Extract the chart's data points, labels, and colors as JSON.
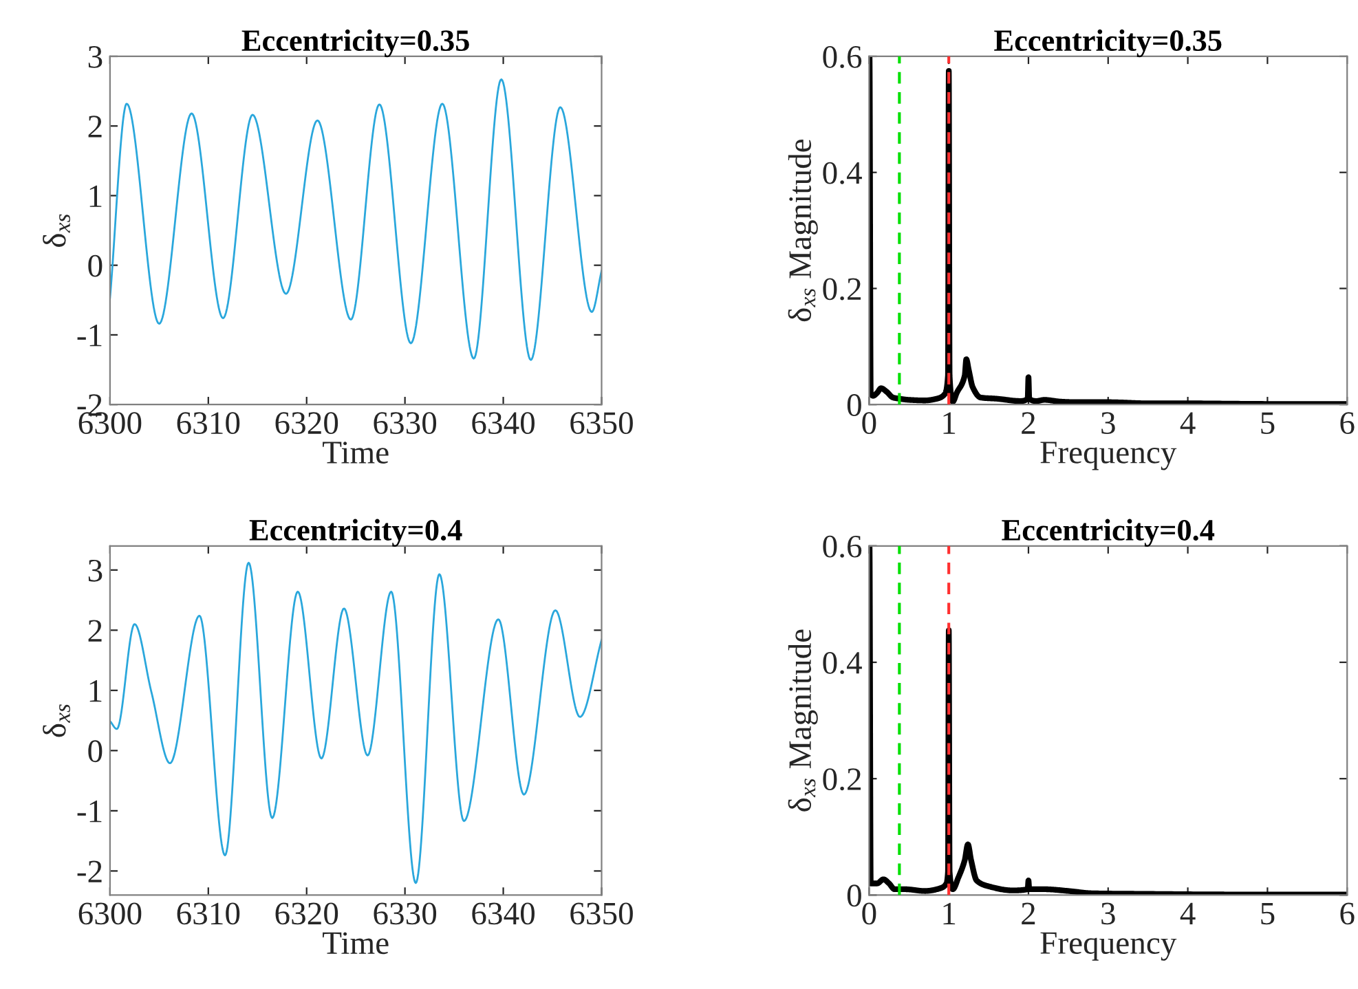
{
  "chart_data": [
    {
      "type": "line",
      "title": "Eccentricity=0.35",
      "xlabel": "Time",
      "ylabel": "δ$_{xs}$",
      "xlim": [
        6300,
        6350
      ],
      "xticks": [
        6300,
        6310,
        6320,
        6330,
        6340,
        6350
      ],
      "ylim": [
        -2,
        3
      ],
      "yticks": [
        -2,
        -1,
        0,
        1,
        2,
        3
      ],
      "grid": false,
      "legend": false,
      "series": [
        {
          "color": "#2aa7dc",
          "x": [
            6300,
            6301.7,
            6305,
            6308.3,
            6311.5,
            6314.5,
            6317.9,
            6321.1,
            6324.5,
            6327.4,
            6330.6,
            6333.8,
            6337,
            6339.8,
            6342.8,
            6345.8,
            6349,
            6350
          ],
          "values": [
            -0.47,
            2.32,
            -0.84,
            2.18,
            -0.76,
            2.16,
            -0.41,
            2.08,
            -0.78,
            2.31,
            -1.12,
            2.32,
            -1.34,
            2.67,
            -1.36,
            2.27,
            -0.67,
            -0.08
          ]
        }
      ]
    },
    {
      "type": "line",
      "title": "Eccentricity=0.35",
      "xlabel": "Frequency",
      "ylabel": "δ$_{xs}$ Magnitude",
      "xlim": [
        0,
        6
      ],
      "xticks": [
        0,
        1,
        2,
        3,
        4,
        5,
        6
      ],
      "ylim": [
        0,
        0.6
      ],
      "yticks": [
        0,
        0.2,
        0.4,
        0.6
      ],
      "grid": false,
      "legend": false,
      "ref_lines": [
        {
          "axis": "x",
          "value": 0.38,
          "color": "#00e000",
          "line_style": "dashed"
        },
        {
          "axis": "x",
          "value": 1,
          "color": "#ff3030",
          "line_style": "dashed"
        }
      ],
      "series": [
        {
          "color": "#000000",
          "x": [
            0,
            0.005,
            0.02,
            0.05,
            0.1,
            0.15,
            0.22,
            0.3,
            0.38,
            0.5,
            0.7,
            0.85,
            0.95,
            0.99,
            1.0,
            1.01,
            1.05,
            1.1,
            1.2,
            1.22,
            1.25,
            1.3,
            1.4,
            1.6,
            1.9,
            1.99,
            2.0,
            2.01,
            2.1,
            2.2,
            2.4,
            2.6,
            3.0,
            3.5,
            4,
            5,
            6
          ],
          "values": [
            0.6,
            0.6,
            0.02,
            0.015,
            0.02,
            0.028,
            0.022,
            0.012,
            0.01,
            0.008,
            0.007,
            0.01,
            0.018,
            0.05,
            0.575,
            0.05,
            0.005,
            0.02,
            0.05,
            0.078,
            0.06,
            0.03,
            0.012,
            0.01,
            0.006,
            0.01,
            0.047,
            0.01,
            0.006,
            0.008,
            0.005,
            0.004,
            0.004,
            0.002,
            0.002,
            0.001,
            0.001
          ]
        }
      ]
    },
    {
      "type": "line",
      "title": "Eccentricity=0.4",
      "xlabel": "Time",
      "ylabel": "δ$_{xs}$",
      "xlim": [
        6300,
        6350
      ],
      "xticks": [
        6300,
        6310,
        6320,
        6330,
        6340,
        6350
      ],
      "ylim": [
        -2.4,
        3.4
      ],
      "yticks": [
        -2,
        -1,
        0,
        1,
        2,
        3
      ],
      "grid": false,
      "legend": false,
      "series": [
        {
          "color": "#2aa7dc",
          "x": [
            6300,
            6300.7,
            6302.5,
            6304.2,
            6306.1,
            6309.1,
            6311.7,
            6314.1,
            6316.5,
            6319.1,
            6321.5,
            6323.8,
            6326.2,
            6328.6,
            6331.1,
            6333.5,
            6336,
            6339.5,
            6342.1,
            6345.3,
            6347.8,
            6350
          ],
          "values": [
            0.49,
            0.36,
            2.1,
            0.98,
            -0.21,
            2.24,
            -1.74,
            3.12,
            -1.12,
            2.64,
            -0.13,
            2.36,
            -0.08,
            2.64,
            -2.2,
            2.93,
            -1.17,
            2.18,
            -0.73,
            2.33,
            0.56,
            1.84
          ]
        }
      ]
    },
    {
      "type": "line",
      "title": "Eccentricity=0.4",
      "xlabel": "Frequency",
      "ylabel": "δ$_{xs}$ Magnitude",
      "xlim": [
        0,
        6
      ],
      "xticks": [
        0,
        1,
        2,
        3,
        4,
        5,
        6
      ],
      "ylim": [
        0,
        0.6
      ],
      "yticks": [
        0,
        0.2,
        0.4,
        0.6
      ],
      "grid": false,
      "legend": false,
      "ref_lines": [
        {
          "axis": "x",
          "value": 0.38,
          "color": "#00e000",
          "line_style": "dashed"
        },
        {
          "axis": "x",
          "value": 1,
          "color": "#ff3030",
          "line_style": "dashed"
        }
      ],
      "series": [
        {
          "color": "#000000",
          "x": [
            0,
            0.005,
            0.02,
            0.1,
            0.18,
            0.25,
            0.32,
            0.45,
            0.7,
            0.9,
            0.97,
            0.99,
            1.0,
            1.01,
            1.05,
            1.12,
            1.2,
            1.24,
            1.28,
            1.35,
            1.5,
            1.8,
            1.99,
            2.0,
            2.01,
            2.2,
            2.5,
            2.8,
            3.5,
            4.5,
            6
          ],
          "values": [
            0.6,
            0.6,
            0.02,
            0.02,
            0.027,
            0.02,
            0.01,
            0.01,
            0.007,
            0.012,
            0.02,
            0.04,
            0.455,
            0.04,
            0.01,
            0.03,
            0.06,
            0.087,
            0.06,
            0.025,
            0.015,
            0.008,
            0.01,
            0.025,
            0.01,
            0.01,
            0.007,
            0.003,
            0.002,
            0.001,
            0.001
          ]
        }
      ]
    }
  ]
}
